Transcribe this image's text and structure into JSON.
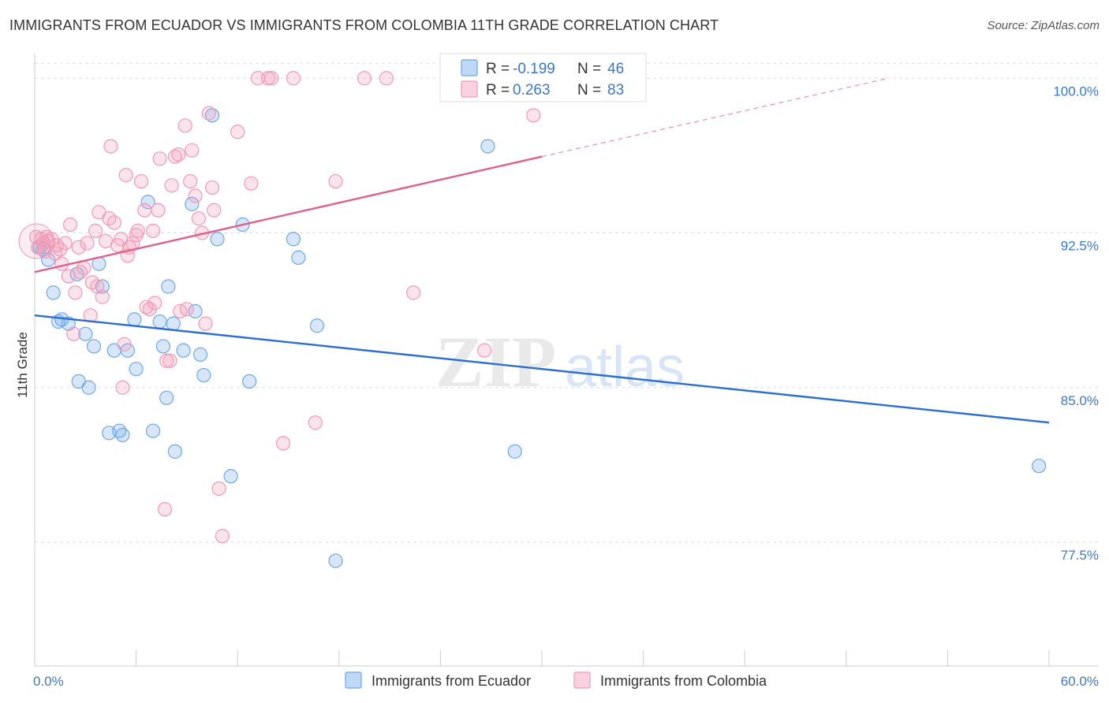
{
  "title": "IMMIGRANTS FROM ECUADOR VS IMMIGRANTS FROM COLOMBIA 11TH GRADE CORRELATION CHART",
  "source": "Source: ZipAtlas.com",
  "watermark": {
    "zip": "ZIP",
    "atlas": "atlas"
  },
  "chart_data": {
    "type": "scatter",
    "title": "IMMIGRANTS FROM ECUADOR VS IMMIGRANTS FROM COLOMBIA 11TH GRADE CORRELATION CHART",
    "xlabel": "",
    "ylabel": "11th Grade",
    "xlim": [
      0,
      60
    ],
    "ylim": [
      71.5,
      101.5
    ],
    "x_tick_labels": {
      "min": "0.0%",
      "max": "60.0%"
    },
    "y_ticks": [
      {
        "value": 77.5,
        "label": "77.5%"
      },
      {
        "value": 85.0,
        "label": "85.0%"
      },
      {
        "value": 92.5,
        "label": "92.5%"
      },
      {
        "value": 100.0,
        "label": "100.0%"
      }
    ],
    "grid": true,
    "legend_position": "top-center",
    "series": [
      {
        "name": "Immigrants from Ecuador",
        "color": "#6fa8e8",
        "line_color": "#2a6fcf",
        "r_label": "R =",
        "r_value": "-0.199",
        "n_label": "N =",
        "n_value": "46",
        "trend": {
          "x1": 0,
          "y1": 88.5,
          "x2": 60,
          "y2": 83.3,
          "dashed_to": null
        },
        "points": [
          [
            0.3,
            91.8
          ],
          [
            0.5,
            91.7
          ],
          [
            0.8,
            91.2
          ],
          [
            1.1,
            89.6
          ],
          [
            1.4,
            88.2
          ],
          [
            1.6,
            88.3
          ],
          [
            2.0,
            88.1
          ],
          [
            2.5,
            90.5
          ],
          [
            3.0,
            87.6
          ],
          [
            3.5,
            87.0
          ],
          [
            3.8,
            91.0
          ],
          [
            4.0,
            89.9
          ],
          [
            2.6,
            85.3
          ],
          [
            3.2,
            85.0
          ],
          [
            4.4,
            82.8
          ],
          [
            5.0,
            82.9
          ],
          [
            5.2,
            82.7
          ],
          [
            4.7,
            86.8
          ],
          [
            5.5,
            86.8
          ],
          [
            5.9,
            88.3
          ],
          [
            6.0,
            85.9
          ],
          [
            6.7,
            94.0
          ],
          [
            7.0,
            82.9
          ],
          [
            7.4,
            88.2
          ],
          [
            7.6,
            87.0
          ],
          [
            7.8,
            84.5
          ],
          [
            7.9,
            89.9
          ],
          [
            8.2,
            88.1
          ],
          [
            8.3,
            81.9
          ],
          [
            8.8,
            86.8
          ],
          [
            9.3,
            93.9
          ],
          [
            9.5,
            88.7
          ],
          [
            9.8,
            86.6
          ],
          [
            10.0,
            85.6
          ],
          [
            10.5,
            98.2
          ],
          [
            10.8,
            92.2
          ],
          [
            11.6,
            80.7
          ],
          [
            12.3,
            92.9
          ],
          [
            12.7,
            85.3
          ],
          [
            15.3,
            92.2
          ],
          [
            15.6,
            91.3
          ],
          [
            16.7,
            88.0
          ],
          [
            17.8,
            76.6
          ],
          [
            26.8,
            96.7
          ],
          [
            28.4,
            81.9
          ],
          [
            59.4,
            81.2
          ]
        ]
      },
      {
        "name": "Immigrants from Colombia",
        "color": "#f19ab8",
        "line_color": "#e0608c",
        "r_label": "R =",
        "r_value": "0.263",
        "n_label": "N =",
        "n_value": "83",
        "trend": {
          "x1": 0,
          "y1": 90.6,
          "x2": 30,
          "y2": 96.2,
          "dashed_to": [
            50.5,
            100.0
          ]
        },
        "points": [
          [
            0.1,
            92.3
          ],
          [
            0.2,
            91.8
          ],
          [
            0.4,
            92.2
          ],
          [
            0.5,
            92.0
          ],
          [
            0.6,
            91.6
          ],
          [
            0.7,
            92.3
          ],
          [
            0.8,
            92.1
          ],
          [
            1.0,
            92.2
          ],
          [
            1.2,
            91.5
          ],
          [
            1.3,
            91.9
          ],
          [
            1.5,
            91.7
          ],
          [
            1.6,
            91.0
          ],
          [
            1.8,
            92.0
          ],
          [
            2.0,
            90.4
          ],
          [
            2.1,
            92.9
          ],
          [
            2.3,
            87.6
          ],
          [
            2.4,
            89.6
          ],
          [
            2.6,
            91.8
          ],
          [
            2.7,
            90.6
          ],
          [
            2.9,
            90.8
          ],
          [
            3.1,
            92.0
          ],
          [
            3.3,
            88.5
          ],
          [
            3.4,
            90.1
          ],
          [
            3.6,
            92.6
          ],
          [
            3.7,
            89.9
          ],
          [
            3.8,
            93.5
          ],
          [
            4.0,
            89.4
          ],
          [
            4.2,
            92.1
          ],
          [
            4.4,
            93.2
          ],
          [
            4.5,
            96.7
          ],
          [
            4.7,
            93.0
          ],
          [
            4.9,
            91.9
          ],
          [
            5.1,
            92.2
          ],
          [
            5.2,
            85.0
          ],
          [
            5.3,
            87.1
          ],
          [
            5.4,
            95.3
          ],
          [
            5.5,
            91.4
          ],
          [
            5.6,
            91.8
          ],
          [
            5.8,
            92.0
          ],
          [
            6.0,
            92.4
          ],
          [
            6.1,
            92.6
          ],
          [
            6.3,
            95.0
          ],
          [
            6.5,
            93.6
          ],
          [
            6.6,
            88.9
          ],
          [
            6.8,
            88.8
          ],
          [
            7.0,
            92.6
          ],
          [
            7.1,
            89.1
          ],
          [
            7.3,
            93.6
          ],
          [
            7.4,
            96.1
          ],
          [
            7.7,
            79.1
          ],
          [
            7.8,
            86.3
          ],
          [
            8.0,
            86.3
          ],
          [
            8.1,
            94.8
          ],
          [
            8.3,
            96.2
          ],
          [
            8.5,
            96.3
          ],
          [
            8.6,
            88.7
          ],
          [
            8.9,
            97.7
          ],
          [
            9.0,
            88.8
          ],
          [
            9.2,
            95.0
          ],
          [
            9.3,
            96.5
          ],
          [
            9.5,
            94.3
          ],
          [
            9.7,
            93.2
          ],
          [
            9.9,
            92.5
          ],
          [
            10.1,
            88.1
          ],
          [
            10.3,
            98.3
          ],
          [
            10.5,
            94.7
          ],
          [
            10.6,
            93.6
          ],
          [
            10.9,
            80.1
          ],
          [
            11.1,
            77.8
          ],
          [
            12.0,
            97.4
          ],
          [
            12.8,
            94.9
          ],
          [
            13.2,
            100.0
          ],
          [
            13.8,
            100.0
          ],
          [
            14.0,
            100.0
          ],
          [
            14.7,
            82.3
          ],
          [
            15.3,
            100.0
          ],
          [
            16.6,
            83.3
          ],
          [
            17.8,
            95.0
          ],
          [
            19.5,
            100.0
          ],
          [
            20.8,
            100.0
          ],
          [
            22.4,
            89.6
          ],
          [
            26.6,
            86.8
          ],
          [
            29.5,
            98.2
          ]
        ]
      }
    ]
  }
}
